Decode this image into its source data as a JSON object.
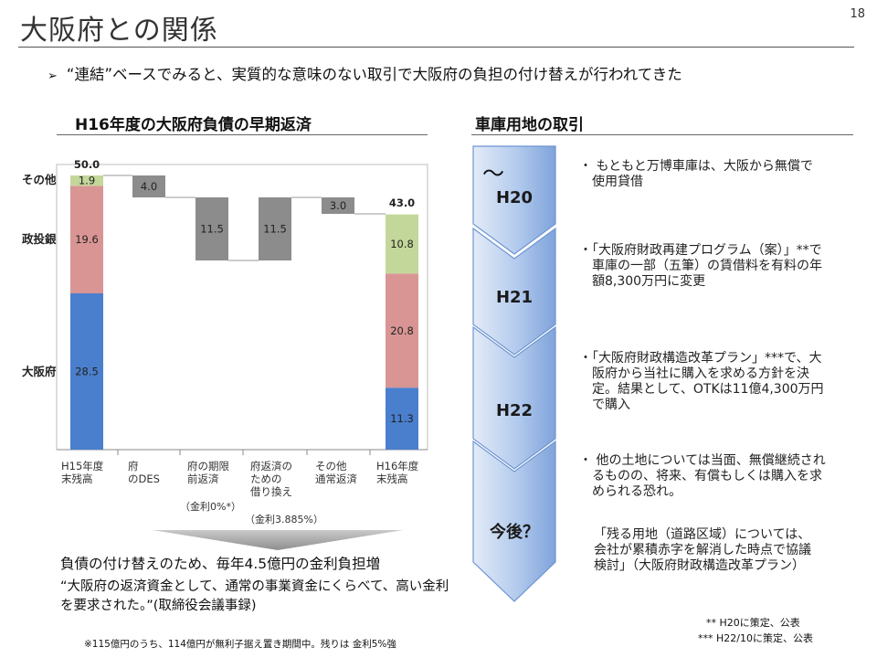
{
  "slide": {
    "title": "大阪府との関係",
    "page_number": "18",
    "bullet": "“連結”ベースでみると、実質的な意味のない取引で大阪府の負担の付け替えが行われてきた"
  },
  "left": {
    "heading": "H16年度の大阪府負債の早期返済",
    "category_labels": [
      "H15年度\n末残高",
      "府\nのDES",
      "府の期限\n前返済",
      "府返済の\nための\n借り換え",
      "その他\n通常返済",
      "H16年度\n末残高"
    ],
    "row_labels": [
      "その他",
      "政投銀",
      "大阪府"
    ],
    "rate_note_1": "（金利0%*）",
    "rate_note_2": "（金利3.885%）",
    "summary_1": "負債の付け替えのため、毎年4.5億円の金利負担増",
    "summary_2": "“大阪府の返済資金として、通常の事業資金にくらべて、高い金利を要求された。”(取締役会議事録)",
    "footnote": "※115億円のうち、114億円が無利子据え置き期間中。残りは 金利5%強"
  },
  "chart_data": {
    "type": "bar",
    "subtype": "waterfall",
    "categories": [
      "H15年度末残高",
      "府のDES",
      "府の期限前返済",
      "府返済のための借り換え",
      "その他通常返済",
      "H16年度末残高"
    ],
    "series": [
      {
        "name": "大阪府",
        "color": "#4a7fcd",
        "values": [
          28.5,
          null,
          null,
          null,
          null,
          11.3
        ]
      },
      {
        "name": "政投銀",
        "color": "#d99594",
        "values": [
          19.6,
          null,
          null,
          null,
          null,
          20.8
        ]
      },
      {
        "name": "その他",
        "color": "#c4d79b",
        "values": [
          1.9,
          null,
          null,
          null,
          null,
          10.8
        ]
      }
    ],
    "changes": [
      {
        "category": "府のDES",
        "value": -4.0,
        "label": "4.0",
        "color": "#8c8c8c"
      },
      {
        "category": "府の期限前返済",
        "value": -11.5,
        "label": "11.5",
        "color": "#8c8c8c"
      },
      {
        "category": "府返済のための借り換え",
        "value": 11.5,
        "label": "11.5",
        "color": "#8c8c8c"
      },
      {
        "category": "その他通常返済",
        "value": -3.0,
        "label": "3.0",
        "color": "#8c8c8c"
      }
    ],
    "totals": [
      {
        "category": "H15年度末残高",
        "value": 50.0,
        "label": "50.0"
      },
      {
        "category": "H16年度末残高",
        "value": 43.0,
        "label": "43.0"
      }
    ],
    "ylim": [
      0,
      50.0
    ],
    "xlabel": "",
    "ylabel": "",
    "title": ""
  },
  "right": {
    "heading": "車庫用地の取引",
    "tilde": "～",
    "phases": [
      {
        "label": "H20",
        "note": "・ もともと万博車庫は、大阪から無償で使用貸借"
      },
      {
        "label": "H21",
        "note": "・「大阪府財政再建プログラム（案）」**で車庫の一部（五筆）の賃借料を有料の年額8,300万円に変更"
      },
      {
        "label": "H22",
        "note": "・「大阪府財政構造改革プラン」***で、大阪府から当社に購入を求める方針を決定。結果として、OTKは11億4,300万円で購入"
      },
      {
        "label": "今後？",
        "note": "・ 他の土地については当面、無償継続されるものの、将来、有償もしくは購入を求められる恐れ。"
      }
    ],
    "quote": "「残る用地（道路区域）については、会社が累積赤字を解消した時点で協議検討」（大阪府財政構造改革プラン）",
    "legend_1": "** H20に策定、公表",
    "legend_2": "*** H22/10に策定、公表"
  }
}
